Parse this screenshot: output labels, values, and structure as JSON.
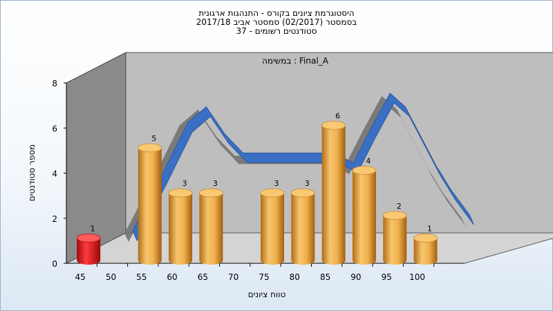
{
  "chart_data": {
    "type": "bar",
    "title_lines": [
      "היסטוגרמת ציונים בקורס - התנהגות ארגונית",
      "בסמסטר  (02/2017)  סמסטר אביב 2017/18",
      "סטודנטים רשומים - 37"
    ],
    "annotation": "במשימה : Final_A",
    "xlabel": "טווח ציונים",
    "ylabel": "מספר סטודנטים",
    "ylim": [
      0,
      8
    ],
    "yticks": [
      0,
      2,
      4,
      6,
      8
    ],
    "xticks": [
      45,
      50,
      55,
      60,
      65,
      70,
      75,
      80,
      85,
      90,
      95,
      100
    ],
    "bars": [
      {
        "x": 45,
        "value": 1,
        "label": "1",
        "color": "#e81a1a"
      },
      {
        "x": 55,
        "value": 5,
        "label": "5",
        "color": "#eaa845"
      },
      {
        "x": 60,
        "value": 3,
        "label": "3",
        "color": "#eaa845"
      },
      {
        "x": 65,
        "value": 3,
        "label": "3",
        "color": "#eaa845"
      },
      {
        "x": 75,
        "value": 3,
        "label": "3",
        "color": "#eaa845"
      },
      {
        "x": 80,
        "value": 3,
        "label": "3",
        "color": "#eaa845"
      },
      {
        "x": 85,
        "value": 6,
        "label": "6",
        "color": "#eaa845"
      },
      {
        "x": 90,
        "value": 4,
        "label": "4",
        "color": "#eaa845"
      },
      {
        "x": 95,
        "value": 2,
        "label": "2",
        "color": "#eaa845"
      },
      {
        "x": 100,
        "value": 1,
        "label": "1",
        "color": "#eaa845"
      }
    ],
    "curve": {
      "color": "#3a6fc4",
      "x": [
        48,
        53,
        57,
        60,
        63,
        66,
        69,
        72,
        75,
        78,
        81,
        84,
        87,
        90,
        92.5,
        95,
        97.5,
        100,
        103
      ],
      "y": [
        0.7,
        3.3,
        5.5,
        6.2,
        5.0,
        4.15,
        4.15,
        4.15,
        4.15,
        4.15,
        4.15,
        3.7,
        5.3,
        6.8,
        6.2,
        4.9,
        3.6,
        2.5,
        1.4
      ]
    },
    "grid": false,
    "colors": {
      "panel": "#bebebe",
      "left_wall": "#8a8a8a",
      "floor": "#d4d4d4",
      "curve_shadow": "#6e6e6e"
    }
  }
}
